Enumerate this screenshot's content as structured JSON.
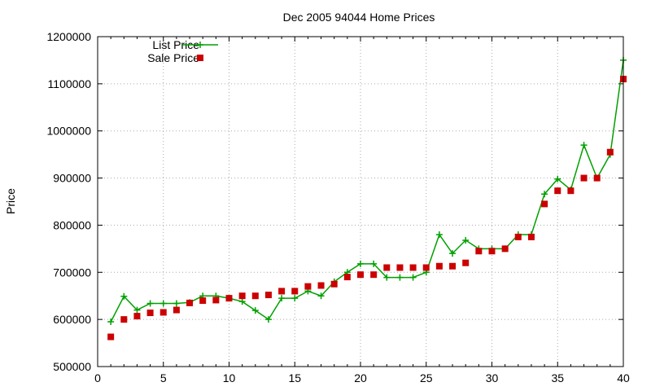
{
  "chart_data": {
    "type": "line",
    "title": "Dec 2005 94044 Home Prices",
    "xlabel": "",
    "ylabel": "Price",
    "xlim": [
      0,
      40
    ],
    "ylim": [
      500000,
      1200000
    ],
    "xticks": [
      0,
      5,
      10,
      15,
      20,
      25,
      30,
      35,
      40
    ],
    "yticks": [
      500000,
      600000,
      700000,
      800000,
      900000,
      1000000,
      1100000,
      1200000
    ],
    "grid": true,
    "legend_position": "top-left",
    "x": [
      1,
      2,
      3,
      4,
      5,
      6,
      7,
      8,
      9,
      10,
      11,
      12,
      13,
      14,
      15,
      16,
      17,
      18,
      19,
      20,
      21,
      22,
      23,
      24,
      25,
      26,
      27,
      28,
      29,
      30,
      31,
      32,
      33,
      34,
      35,
      36,
      37,
      38,
      39,
      40
    ],
    "series": [
      {
        "name": "List Price",
        "style": "line-plus",
        "color": "#00a000",
        "values": [
          595000,
          649000,
          620000,
          634000,
          634000,
          634000,
          636000,
          650000,
          650000,
          645000,
          638000,
          619000,
          600000,
          645000,
          645000,
          660000,
          650000,
          680000,
          700000,
          718000,
          718000,
          689000,
          689000,
          689000,
          700000,
          780000,
          740000,
          768000,
          750000,
          750000,
          750000,
          780000,
          780000,
          866000,
          898000,
          875000,
          970000,
          900000,
          950000,
          1150000
        ]
      },
      {
        "name": "Sale Price",
        "style": "square-markers",
        "color": "#cc0000",
        "values": [
          563000,
          600000,
          607000,
          614000,
          615000,
          620000,
          635000,
          640000,
          641000,
          645000,
          650000,
          650000,
          652000,
          660000,
          660000,
          670000,
          672000,
          675000,
          690000,
          695000,
          695000,
          710000,
          710000,
          710000,
          710000,
          713000,
          713000,
          720000,
          745000,
          745000,
          750000,
          775000,
          775000,
          845000,
          873000,
          873000,
          900000,
          900000,
          955000,
          1110000
        ]
      }
    ]
  }
}
